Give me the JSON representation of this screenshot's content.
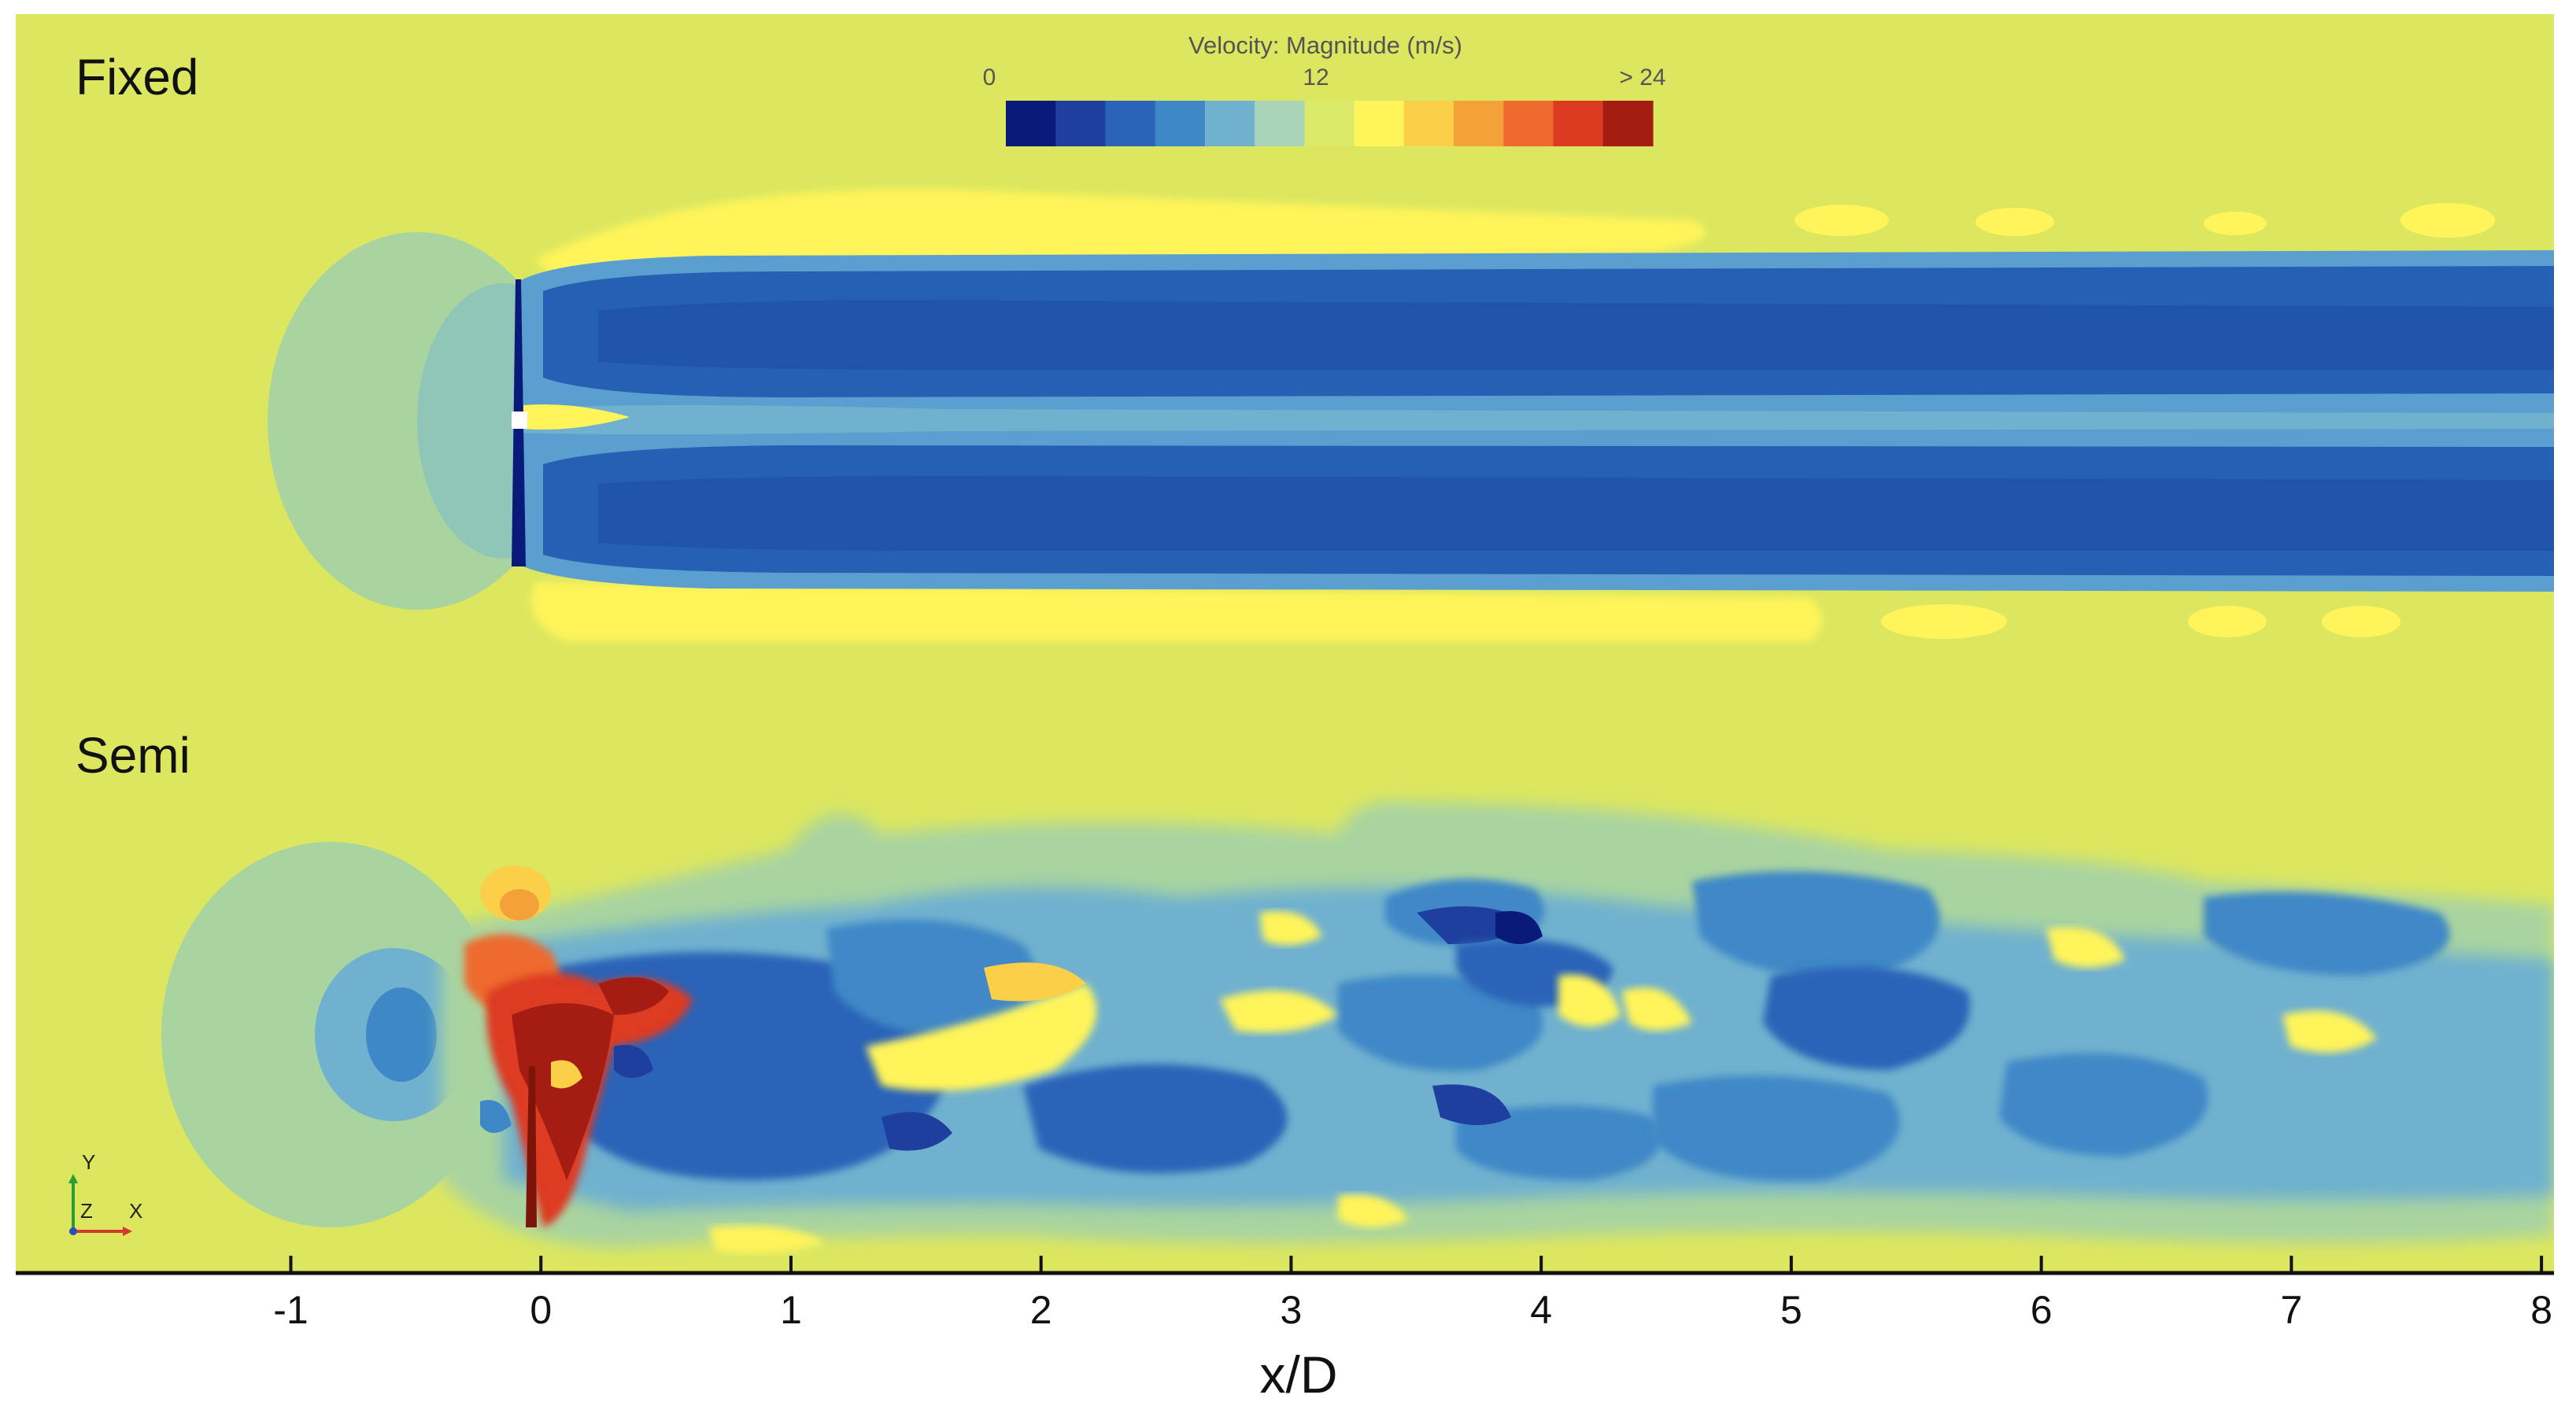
{
  "chart_data": {
    "type": "heatmap",
    "title": "",
    "xlabel": "x/D",
    "ylabel": "",
    "xlim": [
      -2.1,
      8.05
    ],
    "x_ticks": [
      "-1",
      "0",
      "1",
      "2",
      "3",
      "4",
      "5",
      "6",
      "7",
      "8"
    ],
    "panels": [
      {
        "label": "Fixed"
      },
      {
        "label": "Semi"
      }
    ],
    "colorbar": {
      "title": "Velocity: Magnitude (m/s)",
      "tick_labels": [
        "0",
        "12",
        "> 24"
      ],
      "range": [
        0,
        24
      ],
      "colors": [
        "#0a1a7a",
        "#1f3f9e",
        "#2a63b8",
        "#3f88c7",
        "#6fb1cf",
        "#a9d4b8",
        "#dcea6a",
        "#fff45a",
        "#fbd048",
        "#f5a13a",
        "#ee6a2e",
        "#dd3a22",
        "#a51c12"
      ]
    },
    "freestream_color": "#dce75f",
    "axis_triad": {
      "y": "Y",
      "z": "Z",
      "x": "X"
    }
  }
}
